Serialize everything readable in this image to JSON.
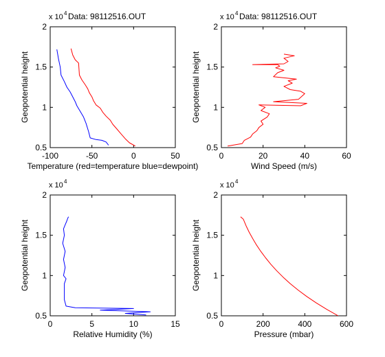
{
  "figure": {
    "background": "#ffffff"
  },
  "chart_data": [
    {
      "type": "line",
      "title": "Data: 98112516.OUT",
      "xlabel": "Temperature (red=temperature blue=dewpoint)",
      "ylabel": "Geopotential height",
      "exponent_label": "x 10",
      "exponent_power": "4",
      "xlim": [
        -100,
        50
      ],
      "ylim": [
        5000,
        20000
      ],
      "xticks": [
        -100,
        -50,
        0,
        50
      ],
      "xtick_labels": [
        "-100",
        "-50",
        "0",
        "50"
      ],
      "yticks": [
        5000,
        10000,
        15000,
        20000
      ],
      "ytick_labels": [
        "0.5",
        "1",
        "1.5",
        "2"
      ],
      "series": [
        {
          "color": "#ff0000",
          "style": "temperature",
          "x": [
            2,
            -5,
            -10,
            -15,
            -20,
            -25,
            -28,
            -33,
            -37,
            -40,
            -45,
            -48,
            -50,
            -53,
            -55,
            -58,
            -62,
            -65,
            -66,
            -70,
            -73,
            -75
          ],
          "y": [
            5200,
            5600,
            6100,
            6700,
            7300,
            7900,
            8400,
            8900,
            9400,
            9900,
            10300,
            10800,
            11300,
            11800,
            12300,
            12800,
            13400,
            14000,
            15500,
            15900,
            16500,
            17300
          ]
        },
        {
          "color": "#0000ff",
          "style": "dewpoint",
          "x": [
            -30,
            -33,
            -38,
            -45,
            -52,
            -54,
            -57,
            -60,
            -64,
            -68,
            -70,
            -73,
            -76,
            -80,
            -83,
            -87,
            -88,
            -90,
            -92
          ],
          "y": [
            5300,
            5700,
            5900,
            6000,
            6200,
            7000,
            8000,
            8800,
            9500,
            10200,
            10700,
            11300,
            11900,
            12500,
            13200,
            14000,
            15000,
            16000,
            17200
          ]
        }
      ]
    },
    {
      "type": "line",
      "title": "Data: 98112516.OUT",
      "xlabel": "Wind Speed (m/s)",
      "ylabel": "Geopotential height",
      "exponent_label": "x 10",
      "exponent_power": "4",
      "xlim": [
        0,
        60
      ],
      "ylim": [
        5000,
        20000
      ],
      "xticks": [
        0,
        20,
        40,
        60
      ],
      "xtick_labels": [
        "0",
        "20",
        "40",
        "60"
      ],
      "yticks": [
        5000,
        10000,
        15000,
        20000
      ],
      "ytick_labels": [
        "0.5",
        "1",
        "1.5",
        "2"
      ],
      "series": [
        {
          "color": "#ff0000",
          "style": "wind",
          "x": [
            3,
            10,
            11,
            14,
            15,
            17,
            18,
            20,
            19,
            22,
            23,
            19,
            21,
            18,
            38,
            41,
            25,
            37,
            40,
            38,
            33,
            30,
            34,
            32,
            36,
            25,
            27,
            30,
            26,
            28,
            27,
            15,
            30,
            32,
            30,
            35,
            30
          ],
          "y": [
            5200,
            5500,
            5900,
            6300,
            6700,
            7100,
            7500,
            7900,
            8300,
            8800,
            9200,
            9600,
            10000,
            10300,
            10200,
            10500,
            10700,
            11000,
            11700,
            12000,
            12200,
            12600,
            13000,
            13300,
            13500,
            13800,
            14300,
            14600,
            14900,
            15100,
            15300,
            15300,
            15400,
            15700,
            16100,
            16400,
            16600
          ]
        }
      ]
    },
    {
      "type": "line",
      "title": "",
      "xlabel": "Relative Humidity (%)",
      "ylabel": "Geopotential height",
      "exponent_label": "x 10",
      "exponent_power": "4",
      "xlim": [
        0,
        15
      ],
      "ylim": [
        5000,
        20000
      ],
      "xticks": [
        0,
        5,
        10,
        15
      ],
      "xtick_labels": [
        "0",
        "5",
        "10",
        "15"
      ],
      "yticks": [
        5000,
        10000,
        15000,
        20000
      ],
      "ytick_labels": [
        "0.5",
        "1",
        "1.5",
        "2"
      ],
      "series": [
        {
          "color": "#0000ff",
          "style": "humidity",
          "x": [
            11.5,
            9,
            12,
            6,
            10,
            3,
            1.9,
            1.7,
            1.7,
            1.7,
            1.9,
            1.6,
            1.8,
            1.6,
            1.8,
            1.5,
            1.7,
            1.6,
            1.8,
            2,
            2.1,
            2.2
          ],
          "y": [
            5100,
            5300,
            5500,
            5700,
            5900,
            6000,
            6200,
            7000,
            8000,
            9000,
            9600,
            10000,
            11000,
            12000,
            13000,
            14000,
            15000,
            15800,
            16300,
            16800,
            17100,
            17300
          ]
        }
      ]
    },
    {
      "type": "line",
      "title": "",
      "xlabel": "Pressure (mbar)",
      "ylabel": "Geopotential height",
      "exponent_label": "x 10",
      "exponent_power": "4",
      "xlim": [
        0,
        600
      ],
      "ylim": [
        5000,
        20000
      ],
      "xticks": [
        0,
        200,
        400,
        600
      ],
      "xtick_labels": [
        "0",
        "200",
        "400",
        "600"
      ],
      "yticks": [
        5000,
        10000,
        15000,
        20000
      ],
      "ytick_labels": [
        "0.5",
        "1",
        "1.5",
        "2"
      ],
      "series": [
        {
          "color": "#ff0000",
          "style": "pressure",
          "x": [
            560,
            505,
            455,
            409,
            368,
            330,
            296,
            265,
            237,
            212,
            189,
            168,
            150,
            133,
            118,
            105,
            92
          ],
          "y": [
            5000,
            5800,
            6600,
            7400,
            8200,
            9000,
            9800,
            10600,
            11400,
            12200,
            13000,
            13800,
            14600,
            15400,
            16200,
            17000,
            17300
          ]
        }
      ]
    }
  ]
}
